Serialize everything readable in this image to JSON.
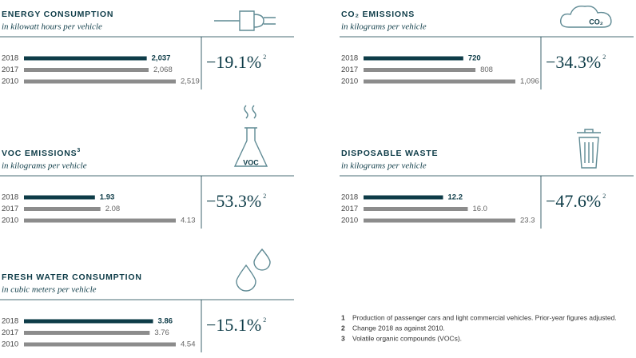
{
  "chart_data": [
    {
      "type": "bar",
      "title": "ENERGY CONSUMPTION",
      "subtitle": "in kilowatt hours per vehicle",
      "categories": [
        "2018",
        "2017",
        "2010"
      ],
      "values": [
        2037,
        2068,
        2519
      ],
      "value_labels": [
        "2,037",
        "2,068",
        "2,519"
      ],
      "colors": [
        "#0e3c48",
        "#8c8c8c",
        "#8c8c8c"
      ],
      "change": "−19.1%",
      "change_note": "2"
    },
    {
      "type": "bar",
      "title": "CO₂ EMISSIONS",
      "subtitle": "in kilograms per vehicle",
      "icon_label": "CO₂",
      "categories": [
        "2018",
        "2017",
        "2010"
      ],
      "values": [
        720,
        808,
        1096
      ],
      "value_labels": [
        "720",
        "808",
        "1,096"
      ],
      "colors": [
        "#0e3c48",
        "#8c8c8c",
        "#8c8c8c"
      ],
      "change": "−34.3%",
      "change_note": "2"
    },
    {
      "type": "bar",
      "title": "VOC EMISSIONS",
      "title_note": "3",
      "subtitle": "in kilograms per vehicle",
      "icon_label": "VOC",
      "categories": [
        "2018",
        "2017",
        "2010"
      ],
      "values": [
        1.93,
        2.08,
        4.13
      ],
      "value_labels": [
        "1.93",
        "2.08",
        "4.13"
      ],
      "colors": [
        "#0e3c48",
        "#8c8c8c",
        "#8c8c8c"
      ],
      "change": "−53.3%",
      "change_note": "2"
    },
    {
      "type": "bar",
      "title": "DISPOSABLE WASTE",
      "subtitle": "in kilograms per vehicle",
      "categories": [
        "2018",
        "2017",
        "2010"
      ],
      "values": [
        12.2,
        16.0,
        23.3
      ],
      "value_labels": [
        "12.2",
        "16.0",
        "23.3"
      ],
      "colors": [
        "#0e3c48",
        "#8c8c8c",
        "#8c8c8c"
      ],
      "change": "−47.6%",
      "change_note": "2"
    },
    {
      "type": "bar",
      "title": "FRESH WATER CONSUMPTION",
      "subtitle": "in cubic meters per vehicle",
      "categories": [
        "2018",
        "2017",
        "2010"
      ],
      "values": [
        3.86,
        3.76,
        4.54
      ],
      "value_labels": [
        "3.86",
        "3.76",
        "4.54"
      ],
      "colors": [
        "#0e3c48",
        "#8c8c8c",
        "#8c8c8c"
      ],
      "change": "−15.1%",
      "change_note": "2"
    }
  ],
  "footnotes": [
    {
      "number": "1",
      "text": "Production of passenger cars and light commercial vehicles. Prior-year figures adjusted."
    },
    {
      "number": "2",
      "text": "Change 2018 as against 2010."
    },
    {
      "number": "3",
      "text": "Volatile organic compounds (VOCs)."
    }
  ]
}
